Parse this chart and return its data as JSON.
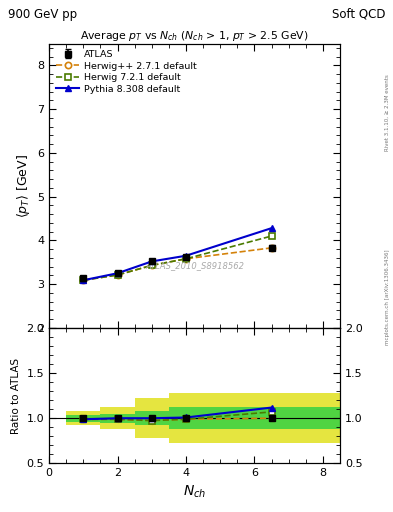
{
  "title_top_left": "900 GeV pp",
  "title_top_right": "Soft QCD",
  "main_title": "Average $p_T$ vs $N_{ch}$ ($N_{ch}$ > 1, $p_T$ > 2.5 GeV)",
  "ylabel_main": "$\\langle p_T \\rangle$ [GeV]",
  "ylabel_ratio": "Ratio to ATLAS",
  "xlabel": "$N_{ch}$",
  "watermark": "ATLAS_2010_S8918562",
  "right_label_top": "Rivet 3.1.10, ≥ 2.3M events",
  "right_label_bot": "mcplots.cern.ch [arXiv:1306.3436]",
  "atlas_x": [
    1,
    2,
    3,
    4,
    6.5
  ],
  "atlas_y": [
    3.13,
    3.25,
    3.52,
    3.62,
    3.83
  ],
  "atlas_yerr": [
    0.05,
    0.04,
    0.04,
    0.04,
    0.06
  ],
  "herwig271_x": [
    1,
    2,
    3,
    4,
    6.5
  ],
  "herwig271_y": [
    3.09,
    3.21,
    3.43,
    3.58,
    3.83
  ],
  "herwig721_x": [
    1,
    2,
    3,
    4,
    6.5
  ],
  "herwig721_y": [
    3.09,
    3.21,
    3.43,
    3.58,
    4.1
  ],
  "pythia_x": [
    1,
    2,
    3,
    4,
    6.5
  ],
  "pythia_y": [
    3.09,
    3.25,
    3.52,
    3.65,
    4.28
  ],
  "ratio_herwig271": [
    0.988,
    0.988,
    0.974,
    0.989,
    1.0
  ],
  "ratio_herwig721": [
    0.988,
    0.988,
    0.974,
    0.989,
    1.07
  ],
  "ratio_pythia": [
    0.988,
    1.0,
    1.0,
    1.008,
    1.118
  ],
  "band_x": [
    0.5,
    1.5,
    1.5,
    2.5,
    2.5,
    3.5,
    3.5,
    5.0,
    5.0,
    8.5
  ],
  "band_green_lo": [
    0.96,
    0.96,
    0.95,
    0.95,
    0.92,
    0.92,
    0.88,
    0.88,
    0.88,
    0.88
  ],
  "band_green_hi": [
    1.04,
    1.04,
    1.05,
    1.05,
    1.08,
    1.08,
    1.12,
    1.12,
    1.12,
    1.12
  ],
  "band_yellow_lo": [
    0.92,
    0.92,
    0.88,
    0.88,
    0.78,
    0.78,
    0.72,
    0.72,
    0.72,
    0.72
  ],
  "band_yellow_hi": [
    1.08,
    1.08,
    1.12,
    1.12,
    1.22,
    1.22,
    1.28,
    1.28,
    1.28,
    1.28
  ],
  "xlim": [
    0,
    8.5
  ],
  "ylim_main": [
    2.0,
    8.5
  ],
  "ylim_ratio": [
    0.5,
    2.0
  ],
  "yticks_main": [
    2,
    3,
    4,
    5,
    6,
    7,
    8
  ],
  "yticks_ratio": [
    0.5,
    1.0,
    1.5,
    2.0
  ],
  "color_atlas": "#000000",
  "color_herwig271": "#d4820a",
  "color_herwig721": "#4a7a00",
  "color_pythia": "#0000cc",
  "color_band_green": "#00cc44",
  "color_band_yellow": "#dddd00",
  "legend_entries": [
    "ATLAS",
    "Herwig++ 2.7.1 default",
    "Herwig 7.2.1 default",
    "Pythia 8.308 default"
  ]
}
